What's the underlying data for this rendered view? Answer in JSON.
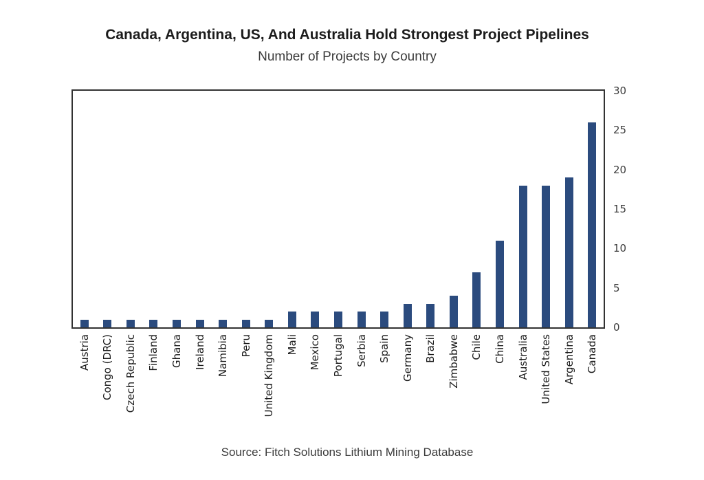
{
  "chart_data": {
    "type": "bar",
    "title": "Canada, Argentina, US, And Australia Hold Strongest Project Pipelines",
    "subtitle": "Number of Projects by Country",
    "source": "Source: Fitch Solutions Lithium Mining Database",
    "categories": [
      "Austria",
      "Congo (DRC)",
      "Czech Republic",
      "Finland",
      "Ghana",
      "Ireland",
      "Namibia",
      "Peru",
      "United Kingdom",
      "Mali",
      "Mexico",
      "Portugal",
      "Serbia",
      "Spain",
      "Germany",
      "Brazil",
      "Zimbabwe",
      "Chile",
      "China",
      "Australia",
      "United States",
      "Argentina",
      "Canada"
    ],
    "values": [
      1,
      1,
      1,
      1,
      1,
      1,
      1,
      1,
      1,
      2,
      2,
      2,
      2,
      2,
      3,
      3,
      4,
      7,
      11,
      18,
      18,
      19,
      26
    ],
    "xlabel": "",
    "ylabel": "",
    "ylim": [
      0,
      30
    ],
    "yticks": [
      0,
      5,
      10,
      15,
      20,
      25,
      30
    ],
    "yaxis_position": "right",
    "grid": false,
    "legend": false,
    "xlabel_rotation_deg": 90,
    "bar_color": "#2b4b7e",
    "plot_border_color": "#323232",
    "title_color": "#1c1c1c",
    "tick_label_color": "#3c3c3c"
  }
}
